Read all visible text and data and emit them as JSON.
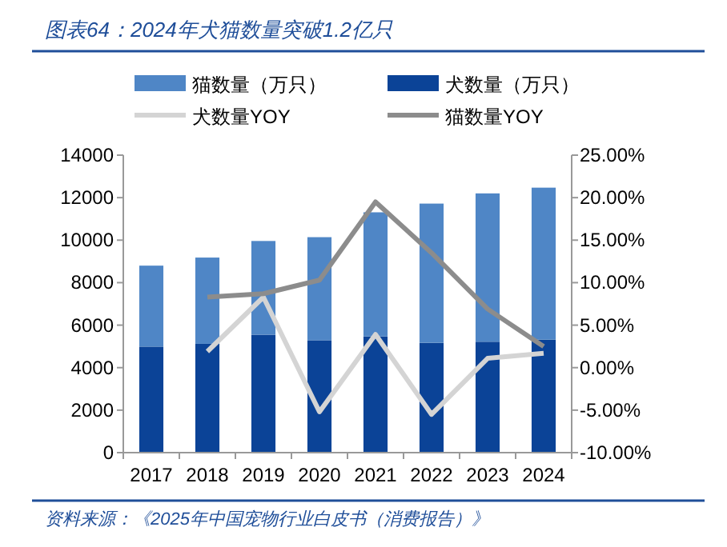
{
  "chart_data": {
    "type": "bar",
    "stacked": true,
    "title": "图表64：2024年犬猫数量突破1.2亿只",
    "categories": [
      "2017",
      "2018",
      "2019",
      "2020",
      "2021",
      "2022",
      "2023",
      "2024"
    ],
    "series": [
      {
        "name": "犬数量（万只）",
        "color": "#0b4397",
        "values": [
          4990,
          5120,
          5550,
          5290,
          5470,
          5170,
          5220,
          5320
        ]
      },
      {
        "name": "猫数量（万只）",
        "color": "#4f86c6",
        "values": [
          3810,
          4060,
          4410,
          4850,
          5840,
          6550,
          6980,
          7150
        ]
      },
      {
        "name": "犬数量YOY",
        "type": "line",
        "axis": "y2",
        "color": "#d4d4d4",
        "values": [
          null,
          1.9,
          8.3,
          -5.2,
          3.9,
          -5.5,
          1.1,
          1.7
        ]
      },
      {
        "name": "猫数量YOY",
        "type": "line",
        "axis": "y2",
        "color": "#8c8c8c",
        "values": [
          null,
          8.3,
          8.7,
          10.3,
          19.5,
          13.5,
          6.9,
          2.5
        ]
      }
    ],
    "ylim": [
      0,
      14000
    ],
    "yticks": [
      0,
      2000,
      4000,
      6000,
      8000,
      10000,
      12000,
      14000
    ],
    "y2lim": [
      -10,
      25
    ],
    "y2ticks": [
      {
        "value": -10,
        "label": "-10.00%"
      },
      {
        "value": -5,
        "label": "-5.00%"
      },
      {
        "value": 0,
        "label": "0.00%"
      },
      {
        "value": 5,
        "label": "5.00%"
      },
      {
        "value": 10,
        "label": "10.00%"
      },
      {
        "value": 15,
        "label": "15.00%"
      },
      {
        "value": 20,
        "label": "20.00%"
      },
      {
        "value": 25,
        "label": "25.00%"
      }
    ],
    "legend": "top",
    "grid": false,
    "annotations": [
      "资料来源：《2025年中国宠物行业白皮书（消费报告）》"
    ]
  }
}
